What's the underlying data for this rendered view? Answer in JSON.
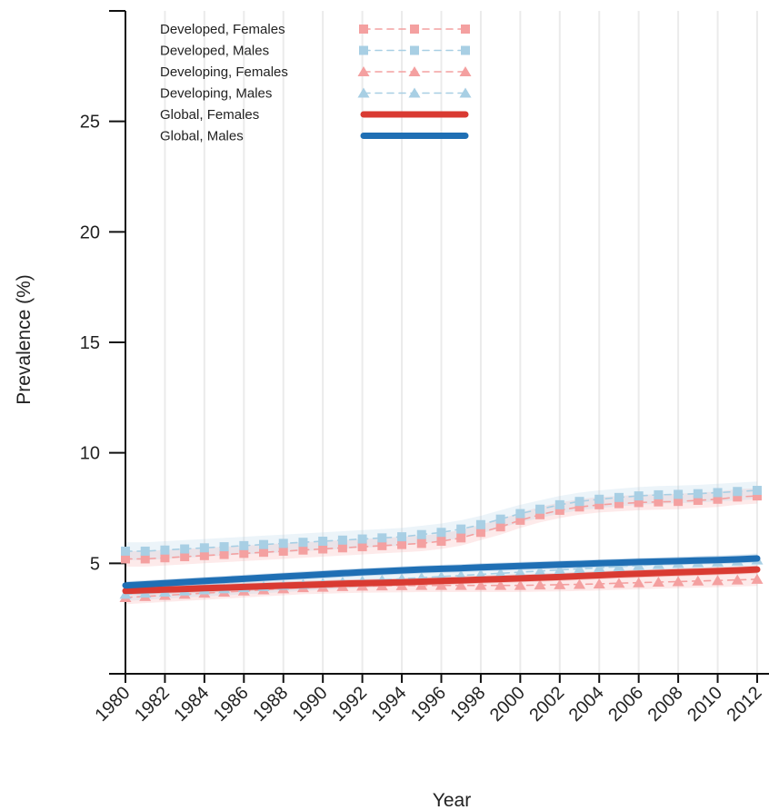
{
  "chart_data": {
    "type": "line",
    "xlabel": "Year",
    "ylabel": "Prevalence (%)",
    "xlim": [
      1980,
      2012.6
    ],
    "ylim": [
      0,
      30
    ],
    "x_ticks": [
      1980,
      1982,
      1984,
      1986,
      1988,
      1990,
      1992,
      1994,
      1996,
      1998,
      2000,
      2002,
      2004,
      2006,
      2008,
      2010,
      2012
    ],
    "y_ticks": [
      5,
      10,
      15,
      20,
      25
    ],
    "grid": "vertical",
    "legend_position": "top-left",
    "x": [
      1980,
      1981,
      1982,
      1983,
      1984,
      1985,
      1986,
      1987,
      1988,
      1989,
      1990,
      1991,
      1992,
      1993,
      1994,
      1995,
      1996,
      1997,
      1998,
      1999,
      2000,
      2001,
      2002,
      2003,
      2004,
      2005,
      2006,
      2007,
      2008,
      2009,
      2010,
      2011,
      2012
    ],
    "series": [
      {
        "name": "Developed, Females",
        "color": "#f4a0a0",
        "style": "dashed",
        "marker": "square",
        "values": [
          5.2,
          5.2,
          5.25,
          5.3,
          5.35,
          5.4,
          5.45,
          5.5,
          5.55,
          5.6,
          5.65,
          5.7,
          5.75,
          5.8,
          5.85,
          5.9,
          6.0,
          6.15,
          6.4,
          6.65,
          6.95,
          7.2,
          7.4,
          7.55,
          7.65,
          7.7,
          7.75,
          7.78,
          7.8,
          7.85,
          7.9,
          8.0,
          8.05
        ]
      },
      {
        "name": "Developed, Males",
        "color": "#a8cfe4",
        "style": "dashed",
        "marker": "square",
        "values": [
          5.55,
          5.55,
          5.6,
          5.65,
          5.7,
          5.75,
          5.8,
          5.85,
          5.9,
          5.95,
          6.0,
          6.05,
          6.1,
          6.15,
          6.2,
          6.3,
          6.4,
          6.55,
          6.75,
          7.0,
          7.25,
          7.45,
          7.65,
          7.8,
          7.9,
          7.98,
          8.05,
          8.1,
          8.12,
          8.15,
          8.2,
          8.25,
          8.3
        ]
      },
      {
        "name": "Developing, Females",
        "color": "#f4a0a0",
        "style": "dashed",
        "marker": "triangle",
        "values": [
          3.45,
          3.5,
          3.55,
          3.6,
          3.65,
          3.7,
          3.75,
          3.8,
          3.85,
          3.9,
          3.92,
          3.95,
          3.97,
          3.98,
          3.99,
          4.0,
          4.0,
          4.0,
          4.0,
          4.0,
          4.0,
          4.02,
          4.03,
          4.05,
          4.07,
          4.1,
          4.12,
          4.15,
          4.17,
          4.2,
          4.22,
          4.25,
          4.28
        ]
      },
      {
        "name": "Developing, Males",
        "color": "#a8cfe4",
        "style": "dashed",
        "marker": "triangle",
        "values": [
          3.6,
          3.65,
          3.7,
          3.75,
          3.8,
          3.85,
          3.9,
          3.95,
          4.0,
          4.05,
          4.1,
          4.15,
          4.2,
          4.25,
          4.3,
          4.35,
          4.4,
          4.45,
          4.5,
          4.55,
          4.6,
          4.65,
          4.7,
          4.75,
          4.8,
          4.85,
          4.9,
          4.95,
          5.0,
          5.03,
          5.06,
          5.1,
          5.15
        ]
      },
      {
        "name": "Global, Females",
        "color": "#d93a32",
        "style": "solid",
        "marker": "none",
        "values": [
          3.75,
          3.78,
          3.81,
          3.84,
          3.87,
          3.9,
          3.93,
          3.96,
          3.99,
          4.02,
          4.05,
          4.08,
          4.1,
          4.12,
          4.14,
          4.17,
          4.2,
          4.23,
          4.26,
          4.29,
          4.32,
          4.35,
          4.38,
          4.42,
          4.46,
          4.5,
          4.53,
          4.56,
          4.59,
          4.62,
          4.65,
          4.68,
          4.72
        ]
      },
      {
        "name": "Global, Males",
        "color": "#1f6fb4",
        "style": "solid",
        "marker": "none",
        "values": [
          4.0,
          4.05,
          4.1,
          4.15,
          4.2,
          4.25,
          4.3,
          4.35,
          4.4,
          4.45,
          4.5,
          4.55,
          4.6,
          4.64,
          4.68,
          4.72,
          4.75,
          4.78,
          4.82,
          4.85,
          4.88,
          4.91,
          4.94,
          4.97,
          5.0,
          5.03,
          5.06,
          5.08,
          5.1,
          5.13,
          5.15,
          5.18,
          5.22
        ]
      }
    ]
  }
}
